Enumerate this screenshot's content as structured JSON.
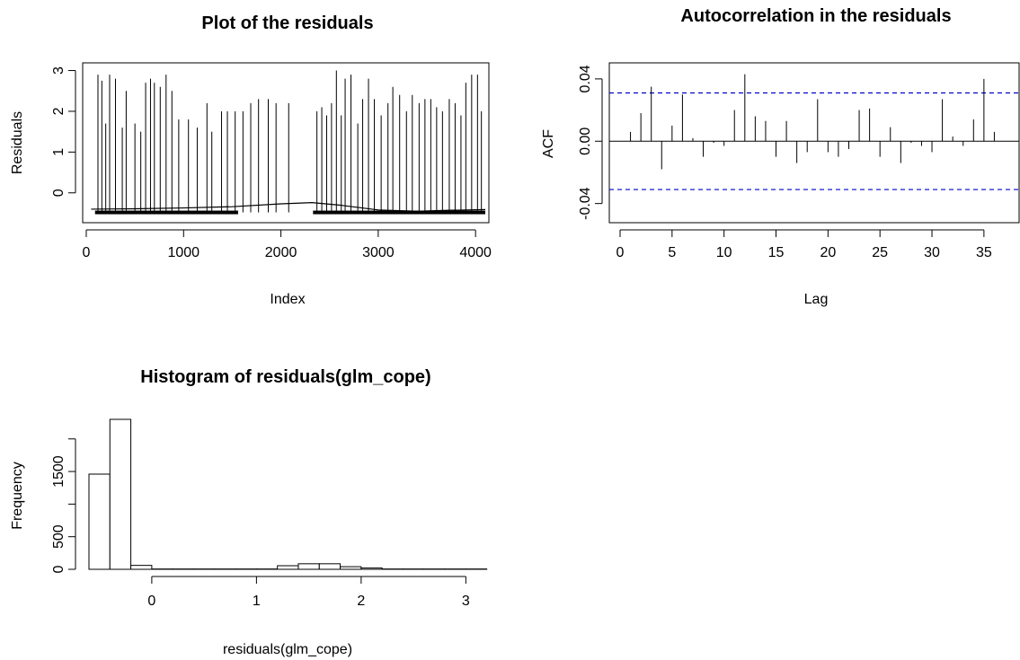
{
  "chart_data": [
    {
      "type": "line",
      "title": "Plot of the residuals",
      "xlabel": "Index",
      "ylabel": "Residuals",
      "xlim": [
        0,
        4100
      ],
      "ylim": [
        -0.6,
        3.1
      ],
      "x_ticks": [
        0,
        1000,
        2000,
        3000,
        4000
      ],
      "y_ticks": [
        0,
        1,
        2,
        3
      ],
      "series": [
        {
          "baseline": {
            "x": [
              50,
              500,
              1000,
              1500,
              2000,
              2320,
              2600,
              3000,
              3400,
              3700,
              4100
            ],
            "y": [
              -0.4,
              -0.39,
              -0.37,
              -0.34,
              -0.27,
              -0.24,
              -0.3,
              -0.42,
              -0.45,
              -0.43,
              -0.41
            ]
          },
          "low_band": {
            "ranges": [
              [
                90,
                1560
              ],
              [
                2330,
                4100
              ]
            ],
            "y": -0.48
          },
          "spikes": {
            "x": [
              120,
              160,
              200,
              240,
              300,
              370,
              410,
              500,
              560,
              610,
              660,
              700,
              760,
              820,
              880,
              950,
              1050,
              1140,
              1240,
              1290,
              1390,
              1450,
              1530,
              1610,
              1690,
              1770,
              1870,
              1950,
              2080,
              2370,
              2420,
              2470,
              2520,
              2570,
              2620,
              2660,
              2720,
              2790,
              2840,
              2900,
              2960,
              3030,
              3100,
              3150,
              3220,
              3290,
              3350,
              3420,
              3480,
              3540,
              3600,
              3660,
              3730,
              3790,
              3850,
              3900,
              3960,
              4020,
              4060
            ],
            "y": [
              2.9,
              2.75,
              1.7,
              2.9,
              2.8,
              1.6,
              2.5,
              1.7,
              1.5,
              2.7,
              2.8,
              2.7,
              2.6,
              2.9,
              2.5,
              1.8,
              1.8,
              1.6,
              2.2,
              1.5,
              2.0,
              2.0,
              2.0,
              2.0,
              2.2,
              2.3,
              2.3,
              2.2,
              2.2,
              2.0,
              2.1,
              1.9,
              2.2,
              3.0,
              1.9,
              2.8,
              2.9,
              1.7,
              2.3,
              2.8,
              2.3,
              1.9,
              2.2,
              2.6,
              2.4,
              2.0,
              2.4,
              2.2,
              2.3,
              2.3,
              2.1,
              2.0,
              2.3,
              2.2,
              1.9,
              2.7,
              2.9,
              2.9,
              2.0
            ]
          }
        }
      ]
    },
    {
      "type": "bar",
      "title": "Autocorrelation in the residuals",
      "xlabel": "Lag",
      "ylabel": "ACF",
      "xlim": [
        0,
        37
      ],
      "ylim": [
        -0.05,
        0.048
      ],
      "x_ticks": [
        0,
        5,
        10,
        15,
        20,
        25,
        30,
        35
      ],
      "y_ticks": [
        -0.04,
        0.0,
        0.04
      ],
      "y_tick_labels": [
        "-0.04",
        "0.00",
        "0.04"
      ],
      "ci": [
        0.031,
        -0.031
      ],
      "colors": {
        "ci": "#0000cd"
      },
      "x": [
        1,
        2,
        3,
        4,
        5,
        6,
        7,
        8,
        9,
        10,
        11,
        12,
        13,
        14,
        15,
        16,
        17,
        18,
        19,
        20,
        21,
        22,
        23,
        24,
        25,
        26,
        27,
        28,
        29,
        30,
        31,
        32,
        33,
        34,
        35,
        36
      ],
      "values": [
        0.006,
        0.018,
        0.035,
        -0.018,
        0.01,
        0.03,
        0.002,
        -0.01,
        -0.001,
        -0.003,
        0.02,
        0.043,
        0.016,
        0.013,
        -0.01,
        0.013,
        -0.014,
        -0.007,
        0.027,
        -0.007,
        -0.01,
        -0.005,
        0.02,
        0.021,
        -0.01,
        0.009,
        -0.014,
        -0.001,
        -0.003,
        -0.007,
        0.027,
        0.003,
        -0.003,
        0.014,
        0.04,
        0.006
      ]
    },
    {
      "type": "bar",
      "title": "Histogram of residuals(glm_cope)",
      "xlabel": "residuals(glm_cope)",
      "ylabel": "Frequency",
      "xlim": [
        -0.66,
        3.22
      ],
      "ylim": [
        0,
        2300
      ],
      "x_ticks": [
        0,
        1,
        2,
        3
      ],
      "y_ticks": [
        0,
        500,
        1500
      ],
      "bin_edges": [
        -0.6,
        -0.4,
        -0.2,
        0.0,
        0.2,
        0.4,
        0.6,
        0.8,
        1.0,
        1.2,
        1.4,
        1.6,
        1.8,
        2.0,
        2.2,
        2.4,
        2.6,
        2.8,
        3.0,
        3.2
      ],
      "values": [
        1460,
        2300,
        60,
        5,
        5,
        5,
        5,
        5,
        5,
        55,
        85,
        85,
        40,
        20,
        5,
        5,
        5,
        5,
        5
      ]
    }
  ]
}
